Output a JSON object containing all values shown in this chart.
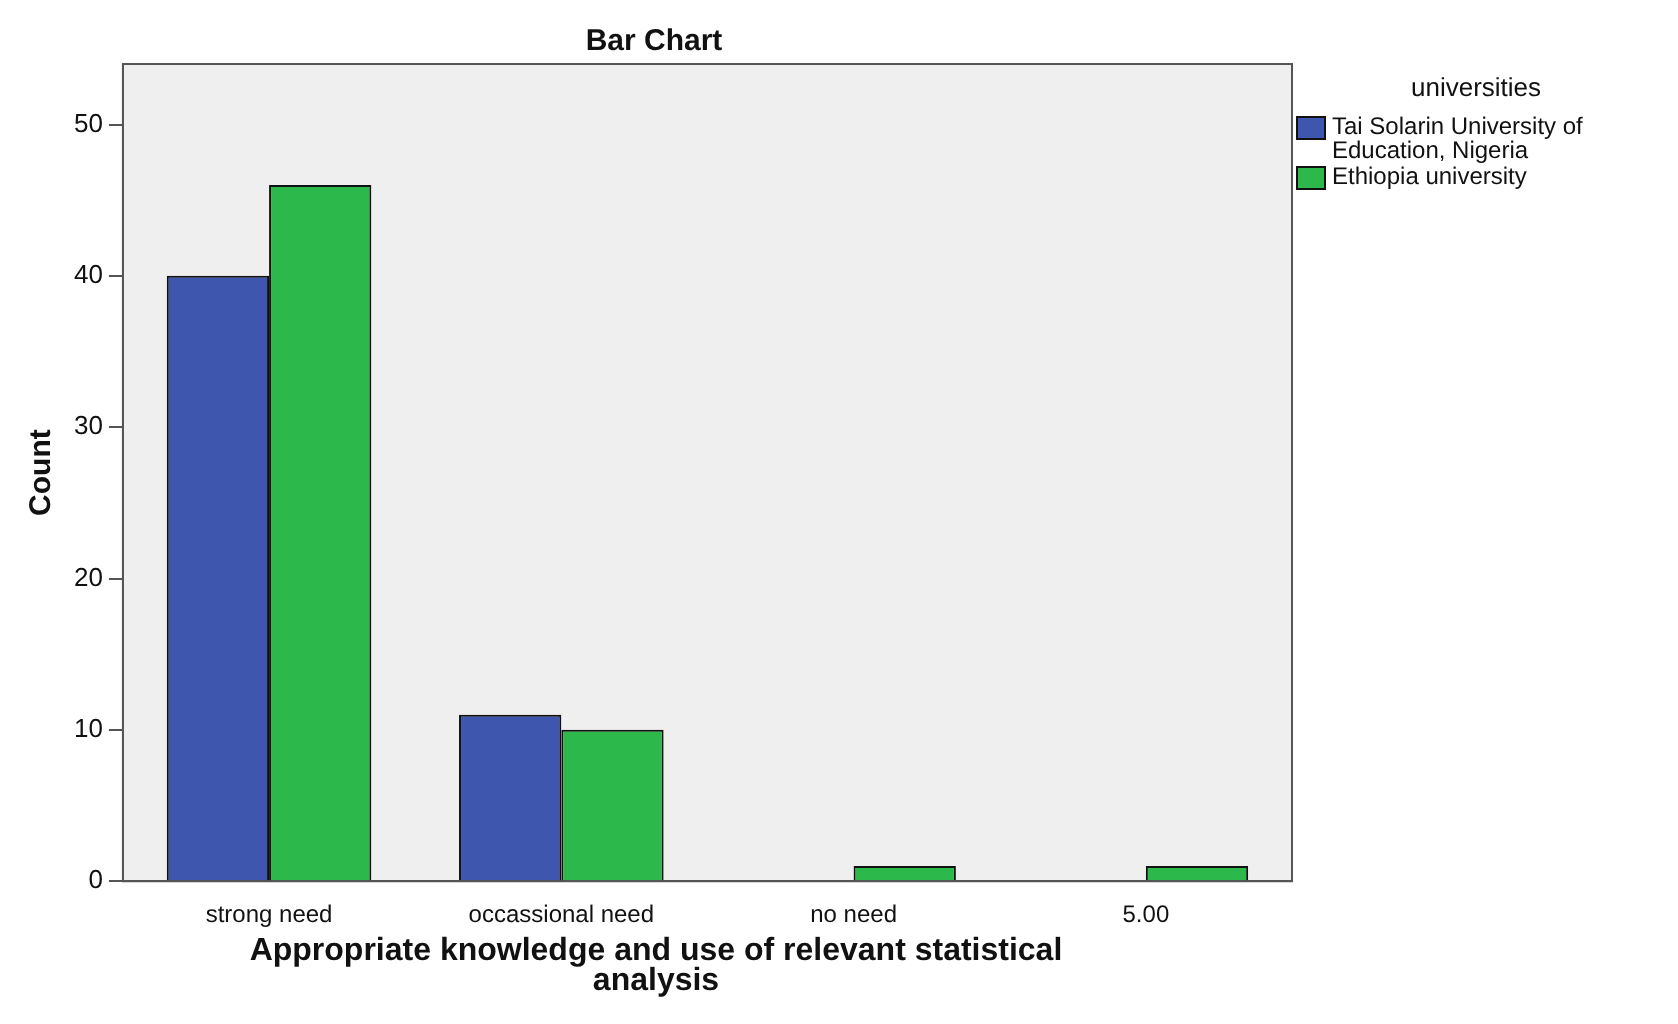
{
  "chart_data": {
    "type": "bar",
    "title": "Bar Chart",
    "xlabel": "Appropriate knowledge and use of relevant statistical analysis",
    "ylabel": "Count",
    "legend_title": "universities",
    "legend": "right",
    "categories": [
      "strong need",
      "occassional need",
      "no need",
      "5.00"
    ],
    "series": [
      {
        "name": "Tai Solarin University of Education, Nigeria",
        "color": "#3e56ad",
        "values": [
          40,
          11,
          null,
          null
        ]
      },
      {
        "name": "Ethiopia university",
        "color": "#2db84b",
        "values": [
          46,
          10,
          1,
          1
        ]
      }
    ],
    "ylim": [
      0,
      54
    ],
    "yticks": [
      0,
      10,
      20,
      30,
      40,
      50
    ],
    "grid": false
  }
}
